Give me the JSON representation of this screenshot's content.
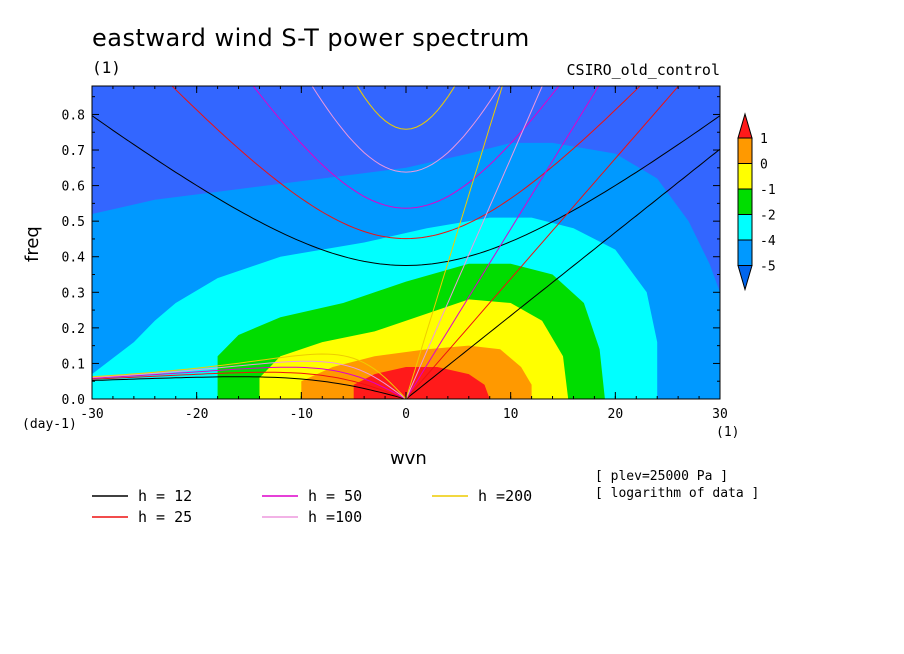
{
  "chart_data": {
    "type": "contour",
    "title": "eastward wind S-T power spectrum",
    "subtitle_left": "(1)",
    "subtitle_right": "CSIRO_old_control",
    "xlabel": "wvn",
    "ylabel": "freq",
    "x_units": "(1)",
    "y_units": "(day-1)",
    "xlim": [
      -30,
      30
    ],
    "ylim": [
      0.0,
      0.88
    ],
    "x_ticks": [
      "-30",
      "-20",
      "-10",
      "0",
      "10",
      "20",
      "30"
    ],
    "y_ticks": [
      "0.0",
      "0.1",
      "0.2",
      "0.3",
      "0.4",
      "0.5",
      "0.6",
      "0.7",
      "0.8"
    ],
    "colorbar": {
      "labels": [
        "1",
        "0",
        "-1",
        "-2",
        "-4",
        "-5"
      ],
      "colors": [
        "#ff1a1a",
        "#ff9900",
        "#ffff00",
        "#00dd00",
        "#00ffff",
        "#0099ff",
        "#0066ee",
        "#3366ff"
      ]
    },
    "contour_regions": [
      {
        "level": "< -5",
        "color": "#3366ff"
      },
      {
        "level": "-5 to -4",
        "color": "#0099ff"
      },
      {
        "level": "-4 to -2",
        "color": "#00ffff"
      },
      {
        "level": "-2 to -1",
        "color": "#00dd00"
      },
      {
        "level": "-1 to 0",
        "color": "#ffff00"
      },
      {
        "level": "0 to 1",
        "color": "#ff9900"
      },
      {
        "level": "> 1",
        "color": "#ff1a1a"
      }
    ],
    "dispersion_curves": [
      {
        "label": "h = 12",
        "h": 12,
        "color": "#000000"
      },
      {
        "label": "h = 25",
        "h": 25,
        "color": "#ee1111"
      },
      {
        "label": "h = 50",
        "h": 50,
        "color": "#dd00cc"
      },
      {
        "label": "h =100",
        "h": 100,
        "color": "#ee99dd"
      },
      {
        "label": "h =200",
        "h": 200,
        "color": "#eecc00"
      }
    ],
    "notes": [
      "[ plev=25000 Pa ]",
      "[ logarithm of data ]"
    ]
  }
}
